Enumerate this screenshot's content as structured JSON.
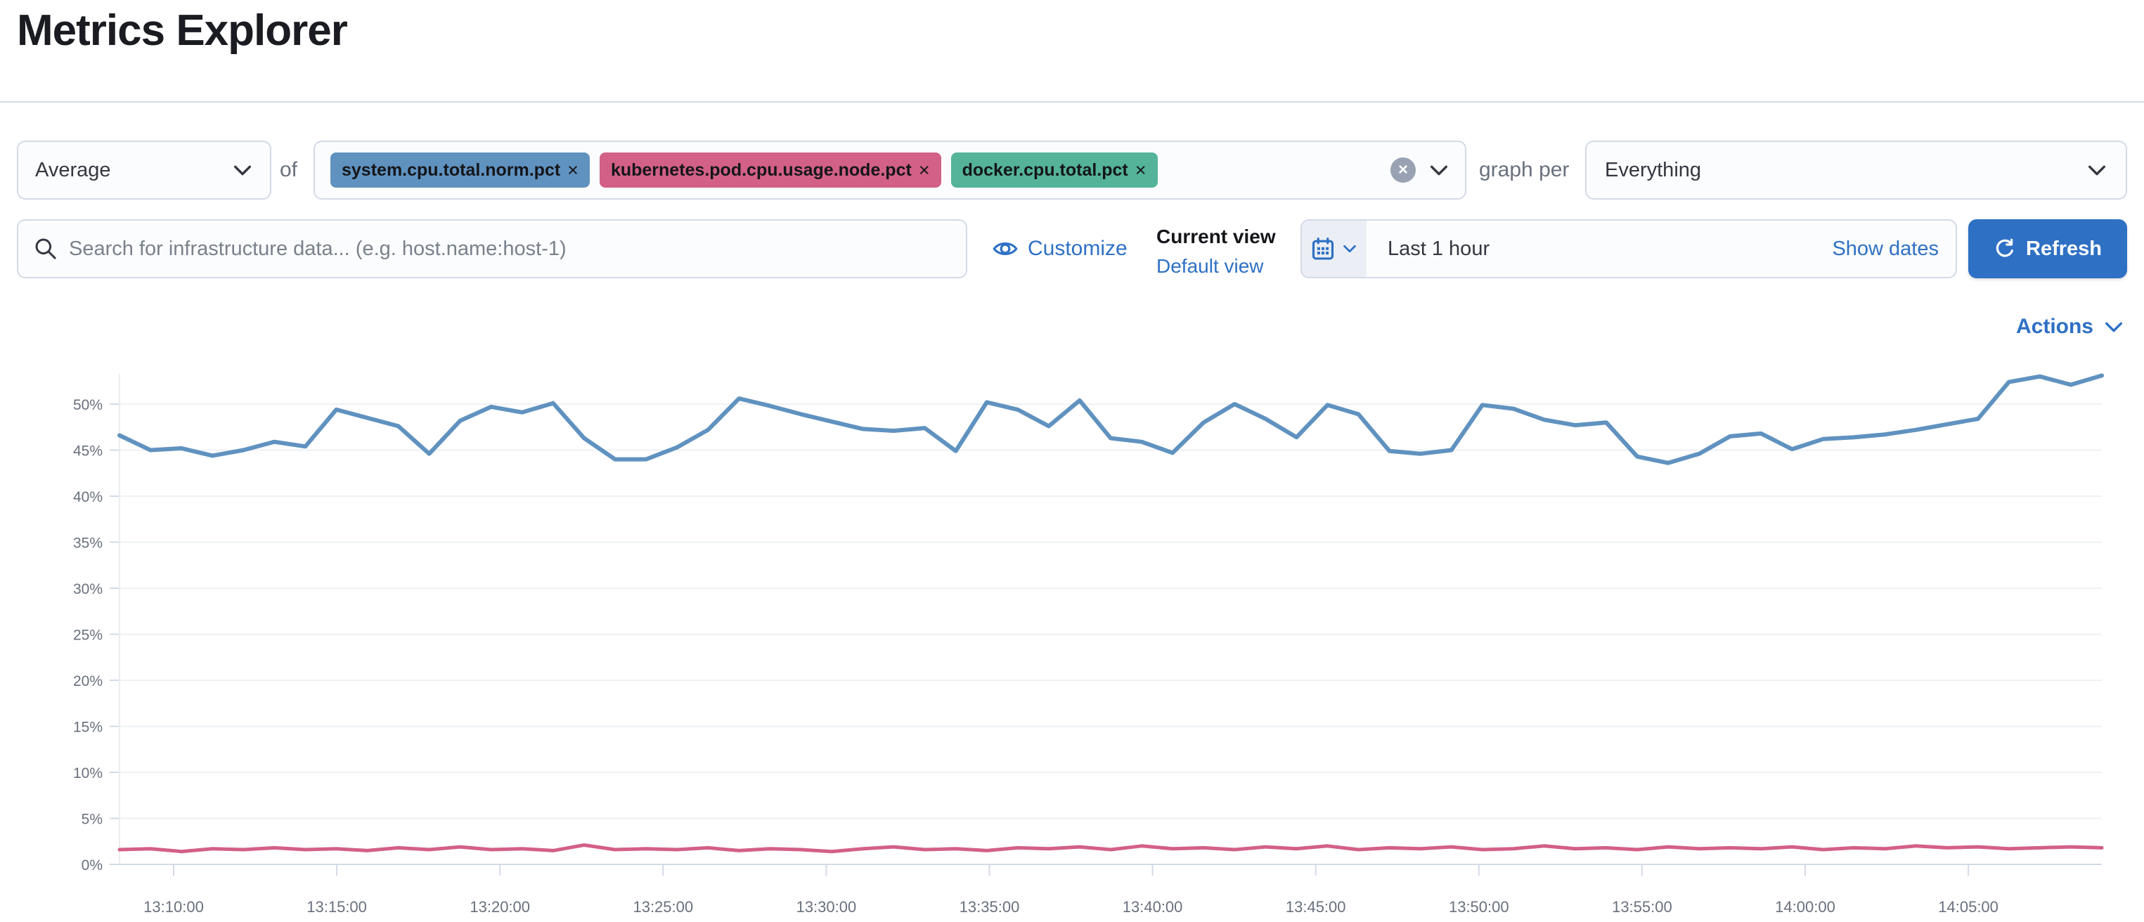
{
  "page": {
    "title": "Metrics Explorer"
  },
  "colors": {
    "accent_blue": "#2e70c4",
    "field_border": "#d3dae6",
    "muted_text": "#69707d"
  },
  "toolbar": {
    "aggregation_value": "Average",
    "of_label": "of",
    "metrics": [
      {
        "label": "system.cpu.total.norm.pct",
        "color": "#6092c0",
        "remove_glyph": "×"
      },
      {
        "label": "kubernetes.pod.cpu.usage.node.pct",
        "color": "#d36086",
        "remove_glyph": "×"
      },
      {
        "label": "docker.cpu.total.pct",
        "color": "#54b399",
        "remove_glyph": "×"
      }
    ],
    "clear_glyph": "×",
    "graph_per_label": "graph per",
    "group_by_value": "Everything"
  },
  "search": {
    "placeholder": "Search for infrastructure data... (e.g. host.name:host-1)"
  },
  "view_controls": {
    "customize_label": "Customize",
    "current_view_label": "Current view",
    "default_view_label": "Default view"
  },
  "time_picker": {
    "value": "Last 1 hour",
    "show_dates_label": "Show dates",
    "refresh_label": "Refresh"
  },
  "actions": {
    "label": "Actions"
  },
  "chart_data": {
    "type": "line",
    "title": "",
    "xlabel": "",
    "ylabel": "",
    "grid": true,
    "legend": "none",
    "ylim": [
      0,
      54
    ],
    "y_unit": "%",
    "y_tick_labels": [
      "0%",
      "5%",
      "10%",
      "15%",
      "20%",
      "25%",
      "30%",
      "35%",
      "40%",
      "45%",
      "50%"
    ],
    "x_tick_labels": [
      "13:10:00",
      "13:15:00",
      "13:20:00",
      "13:25:00",
      "13:30:00",
      "13:35:00",
      "13:40:00",
      "13:45:00",
      "13:50:00",
      "13:55:00",
      "14:00:00",
      "14:05:00"
    ],
    "x_range": [
      "13:08:00",
      "14:08:00"
    ],
    "series": [
      {
        "name": "system.cpu.total.norm.pct",
        "color": "#6092c0",
        "values": [
          46.6,
          45.0,
          45.2,
          44.4,
          45.0,
          45.9,
          45.4,
          49.4,
          48.5,
          47.6,
          44.6,
          48.2,
          49.7,
          49.1,
          50.1,
          46.3,
          44.0,
          44.0,
          45.3,
          47.2,
          50.6,
          49.8,
          48.9,
          48.1,
          47.3,
          47.1,
          47.4,
          44.9,
          50.2,
          49.4,
          47.6,
          50.4,
          46.3,
          45.9,
          44.7,
          48.0,
          50.0,
          48.4,
          46.4,
          49.9,
          48.9,
          44.9,
          44.6,
          45.0,
          49.9,
          49.5,
          48.3,
          47.7,
          48.0,
          44.3,
          43.6,
          44.6,
          46.5,
          46.8,
          45.1,
          46.2,
          46.4,
          46.7,
          47.2,
          47.8,
          48.4,
          52.4,
          53.0,
          52.1,
          53.1
        ]
      },
      {
        "name": "kubernetes.pod.cpu.usage.node.pct",
        "color": "#d36086",
        "values": [
          1.6,
          1.7,
          1.4,
          1.7,
          1.6,
          1.8,
          1.6,
          1.7,
          1.5,
          1.8,
          1.6,
          1.9,
          1.6,
          1.7,
          1.5,
          2.1,
          1.6,
          1.7,
          1.6,
          1.8,
          1.5,
          1.7,
          1.6,
          1.4,
          1.7,
          1.9,
          1.6,
          1.7,
          1.5,
          1.8,
          1.7,
          1.9,
          1.6,
          2.0,
          1.7,
          1.8,
          1.6,
          1.9,
          1.7,
          2.0,
          1.6,
          1.8,
          1.7,
          1.9,
          1.6,
          1.7,
          2.0,
          1.7,
          1.8,
          1.6,
          1.9,
          1.7,
          1.8,
          1.7,
          1.9,
          1.6,
          1.8,
          1.7,
          2.0,
          1.8,
          1.9,
          1.7,
          1.8,
          1.9,
          1.8
        ]
      }
    ]
  }
}
